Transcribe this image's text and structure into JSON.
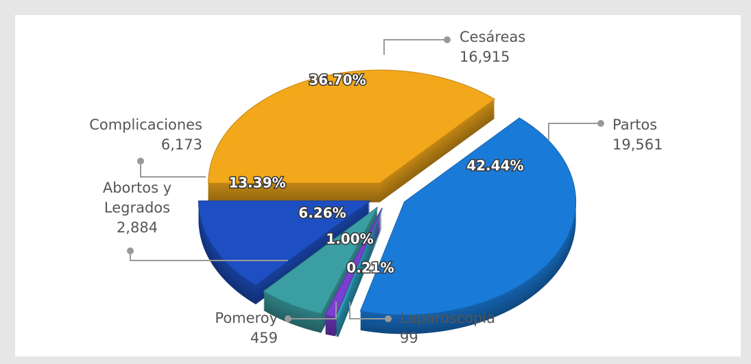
{
  "chart_data": {
    "type": "pie3d",
    "categories": [
      "Cesáreas",
      "Partos",
      "Laparoscopia",
      "Pomeroy",
      "Abortos y Legrados",
      "Complicaciones"
    ],
    "values": [
      16915,
      19561,
      99,
      459,
      2884,
      6173
    ],
    "value_labels": [
      "16,915",
      "19,561",
      "99",
      "459",
      "2,884",
      "6,173"
    ],
    "shares": [
      36.7,
      42.44,
      0.21,
      1.0,
      6.26,
      13.39
    ],
    "share_labels": [
      "36.70%",
      "42.44%",
      "0.21%",
      "1.00%",
      "6.26%",
      "13.39%"
    ],
    "colors": [
      "#f2a81a",
      "#1a7ad8",
      "#2ea6c4",
      "#7a3fd0",
      "#3a9ea2",
      "#1d4fc2"
    ]
  }
}
